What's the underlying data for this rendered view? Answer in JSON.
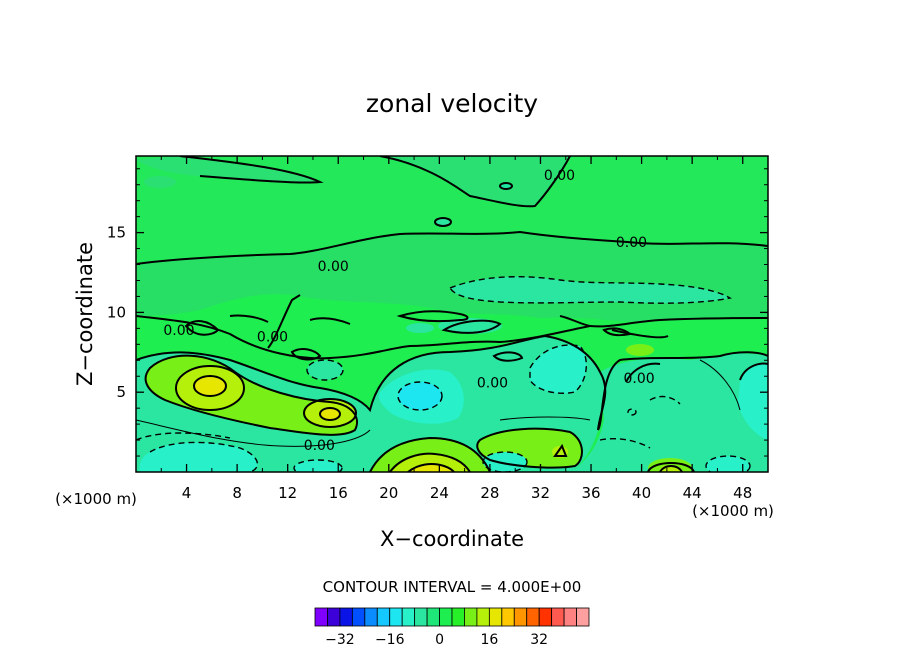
{
  "chart_data": {
    "type": "heatmap",
    "title": "zonal velocity",
    "xlabel": "X−coordinate",
    "ylabel": "Z−coordinate",
    "x_units": "(×1000 m)",
    "y_units": "(×1000 m)",
    "xlim": [
      0,
      50
    ],
    "ylim": [
      0,
      19.8
    ],
    "x_ticks": [
      "4",
      "8",
      "12",
      "16",
      "20",
      "24",
      "28",
      "32",
      "36",
      "40",
      "44",
      "48"
    ],
    "y_ticks": [
      "5",
      "10",
      "15"
    ],
    "contour_interval_text": "CONTOUR INTERVAL = 4.000E+00",
    "contour_labels": [
      {
        "text": "0.00",
        "x": 33.5,
        "y": 18.6
      },
      {
        "text": "0.00",
        "x": 39.2,
        "y": 14.4
      },
      {
        "text": "0.00",
        "x": 15.6,
        "y": 12.9
      },
      {
        "text": "0.00",
        "x": 10.8,
        "y": 8.5
      },
      {
        "text": "0.00",
        "x": 3.4,
        "y": 8.9
      },
      {
        "text": "0.00",
        "x": 28.2,
        "y": 5.6
      },
      {
        "text": "0.00",
        "x": 39.8,
        "y": 5.9
      },
      {
        "text": "0.00",
        "x": 14.5,
        "y": 1.7
      }
    ],
    "features": [
      {
        "kind": "positive_max",
        "x": 6,
        "y": 5.5,
        "level": 16
      },
      {
        "kind": "positive_max",
        "x": 23,
        "y": 0.3,
        "level": 20
      },
      {
        "kind": "positive_max",
        "x": 15,
        "y": 3.6,
        "level": 12
      },
      {
        "kind": "positive_max",
        "x": 33,
        "y": 1.5,
        "level": 8
      },
      {
        "kind": "positive_max",
        "x": 42.5,
        "y": 0.4,
        "level": 12
      },
      {
        "kind": "negative_min",
        "x": 22,
        "y": 5,
        "level": -8
      },
      {
        "kind": "negative_min",
        "x": 33,
        "y": 6.5,
        "level": -4
      },
      {
        "kind": "negative_min",
        "x": 3,
        "y": 1.5,
        "level": -8
      },
      {
        "kind": "negative_min",
        "x": 15,
        "y": 0.3,
        "level": -4
      },
      {
        "kind": "negative_min",
        "x": 29,
        "y": 1,
        "level": -4
      },
      {
        "kind": "negative_min",
        "x": 47,
        "y": 0.5,
        "level": -4
      },
      {
        "kind": "negative_min",
        "x": 48.5,
        "y": 5,
        "level": -4
      },
      {
        "kind": "negative_min",
        "x": 36,
        "y": 11.3,
        "level": -4
      }
    ]
  },
  "colorbar": {
    "colors": [
      "#7f00ff",
      "#3c00d8",
      "#0a14e6",
      "#0050ff",
      "#0a8cff",
      "#14c8ff",
      "#1ee6f0",
      "#28f0c8",
      "#2ae6a0",
      "#1ee678",
      "#1eee50",
      "#28f028",
      "#78f018",
      "#b4f00a",
      "#e6e600",
      "#ffc800",
      "#ff9600",
      "#ff6400",
      "#ff3200",
      "#ff5a50",
      "#ff8282",
      "#ffa0a0"
    ],
    "tick_labels": [
      "−32",
      "−16",
      "0",
      "16",
      "32"
    ],
    "min": -40,
    "max": 48
  }
}
